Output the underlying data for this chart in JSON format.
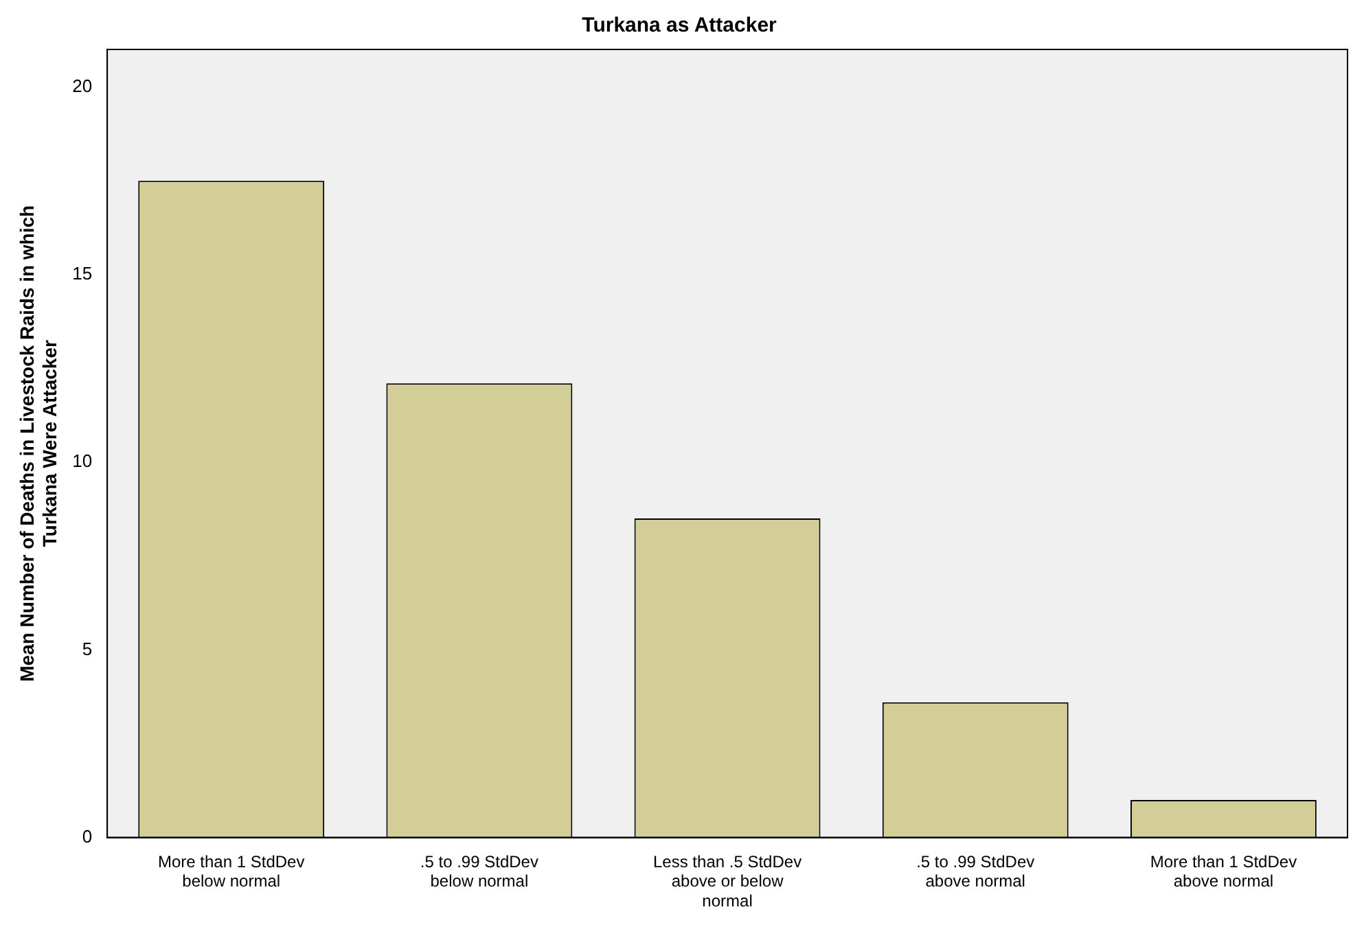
{
  "chart_data": {
    "type": "bar",
    "title": "Turkana as Attacker",
    "ylabel": "Mean Number of Deaths in Livestock Raids in which Turkana Were Attacker",
    "categories": [
      "More than 1 StdDev below normal",
      ".5 to .99 StdDev below normal",
      "Less than .5 StdDev above or below normal",
      ".5 to .99 StdDev above normal",
      "More than 1 StdDev above normal"
    ],
    "values": [
      17.5,
      12.1,
      8.5,
      3.6,
      1.0
    ],
    "color": "#d3ce97",
    "ylim": [
      0,
      21
    ],
    "yticks": [
      0,
      5,
      10,
      15,
      20
    ],
    "grid": false,
    "legend": false
  }
}
